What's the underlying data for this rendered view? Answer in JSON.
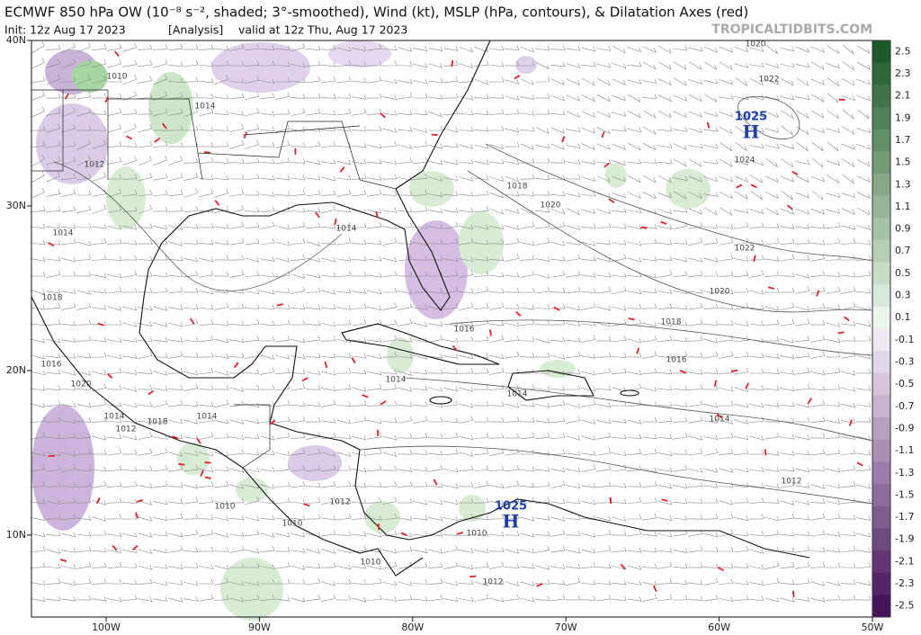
{
  "header": {
    "title": "ECMWF 850 hPa OW (10⁻⁸ s⁻², shaded; 3°-smoothed), Wind (kt), MSLP (hPa, contours), & Dilatation Axes (red)",
    "init": "Init: 12z Aug 17 2023",
    "analysis": "[Analysis]",
    "valid": "valid at 12z Thu, Aug 17 2023",
    "watermark": "TROPICALTIDBITS.COM"
  },
  "map": {
    "lat_labels": [
      "40N",
      "30N",
      "20N",
      "10N"
    ],
    "lon_labels": [
      "100W",
      "90W",
      "80W",
      "70W",
      "60W",
      "50W"
    ],
    "isobar_labels": [
      "1020",
      "1010",
      "1022",
      "1014",
      "1012",
      "1024",
      "1018",
      "1020",
      "1014",
      "1014",
      "1022",
      "1020",
      "1018",
      "1018",
      "1016",
      "1016",
      "1016",
      "1020",
      "1014",
      "1014",
      "1014",
      "1018",
      "1014",
      "1012",
      "1014",
      "1012",
      "1012",
      "1010",
      "1010",
      "1010",
      "1010",
      "1012"
    ],
    "highs": [
      {
        "pressure": "1025",
        "symbol": "H"
      },
      {
        "pressure": "1025",
        "symbol": "H"
      }
    ]
  },
  "colorbar": {
    "ticks": [
      2.5,
      2.3,
      2.1,
      1.9,
      1.7,
      1.5,
      1.3,
      1.1,
      0.9,
      0.7,
      0.5,
      0.3,
      0.1,
      -0.1,
      -0.3,
      -0.5,
      -0.7,
      -0.9,
      -1.1,
      -1.3,
      -1.5,
      -1.7,
      -1.9,
      -2.1,
      -2.3,
      -2.5
    ]
  }
}
